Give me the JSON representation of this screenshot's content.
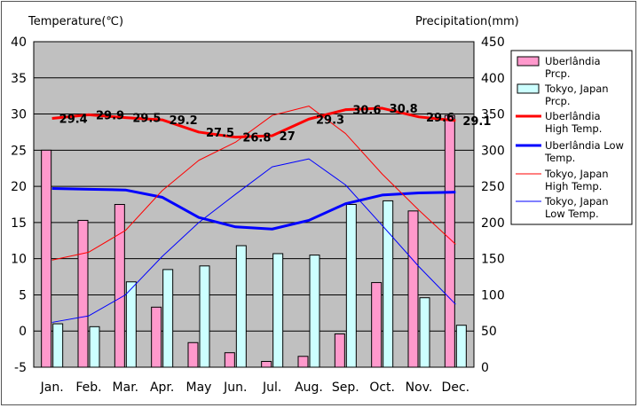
{
  "chart_data": {
    "type": "bar+line",
    "title": "",
    "left_axis_label": "Temperature(℃)",
    "right_axis_label": "Precipitation(mm)",
    "left_ylim": [
      -5,
      40
    ],
    "left_ticks": [
      -5,
      0,
      5,
      10,
      15,
      20,
      25,
      30,
      35,
      40
    ],
    "right_ylim": [
      0,
      450
    ],
    "right_ticks": [
      0,
      50,
      100,
      150,
      200,
      250,
      300,
      350,
      400,
      450
    ],
    "grid": true,
    "legend_position": "right",
    "categories": [
      "Jan.",
      "Feb.",
      "Mar.",
      "Apr.",
      "May",
      "Jun.",
      "Jul.",
      "Aug.",
      "Sep.",
      "Oct.",
      "Nov.",
      "Dec."
    ],
    "bar_series": [
      {
        "name": "Uberlândia Prcp.",
        "color": "#ff99cc",
        "axis": "right",
        "values": [
          300,
          203,
          225,
          83,
          34,
          20,
          8,
          15,
          46,
          117,
          216,
          348
        ]
      },
      {
        "name": "Tokyo, Japan Prcp.",
        "color": "#ccffff",
        "axis": "right",
        "values": [
          60,
          56,
          118,
          135,
          140,
          168,
          157,
          155,
          225,
          230,
          96,
          58
        ]
      }
    ],
    "line_series": [
      {
        "name": "Uberlândia High Temp.",
        "color": "#ff0000",
        "width": "thick",
        "axis": "left",
        "values": [
          29.4,
          29.9,
          29.5,
          29.2,
          27.5,
          26.8,
          27.0,
          29.3,
          30.6,
          30.8,
          29.6,
          29.1
        ],
        "labels": [
          "29.4",
          "29.9",
          "29.5",
          "29.2",
          "27.5",
          "26.8",
          "27",
          "29.3",
          "30.6",
          "30.8",
          "29.6",
          "29.1"
        ]
      },
      {
        "name": "Uberlândia Low Temp.",
        "color": "#0000ff",
        "width": "thick",
        "axis": "left",
        "values": [
          19.7,
          19.6,
          19.5,
          18.5,
          15.7,
          14.4,
          14.1,
          15.3,
          17.6,
          18.8,
          19.1,
          19.2
        ]
      },
      {
        "name": "Tokyo, Japan High Temp.",
        "color": "#ff0000",
        "width": "thin",
        "axis": "left",
        "values": [
          9.8,
          10.9,
          13.9,
          19.4,
          23.6,
          26.1,
          29.8,
          31.1,
          27.3,
          21.7,
          16.7,
          12.0
        ]
      },
      {
        "name": "Tokyo, Japan Low Temp.",
        "color": "#0000ff",
        "width": "thin",
        "axis": "left",
        "values": [
          1.2,
          2.1,
          5.0,
          10.3,
          15.0,
          18.9,
          22.7,
          23.8,
          20.2,
          14.6,
          8.9,
          3.7
        ]
      }
    ]
  }
}
